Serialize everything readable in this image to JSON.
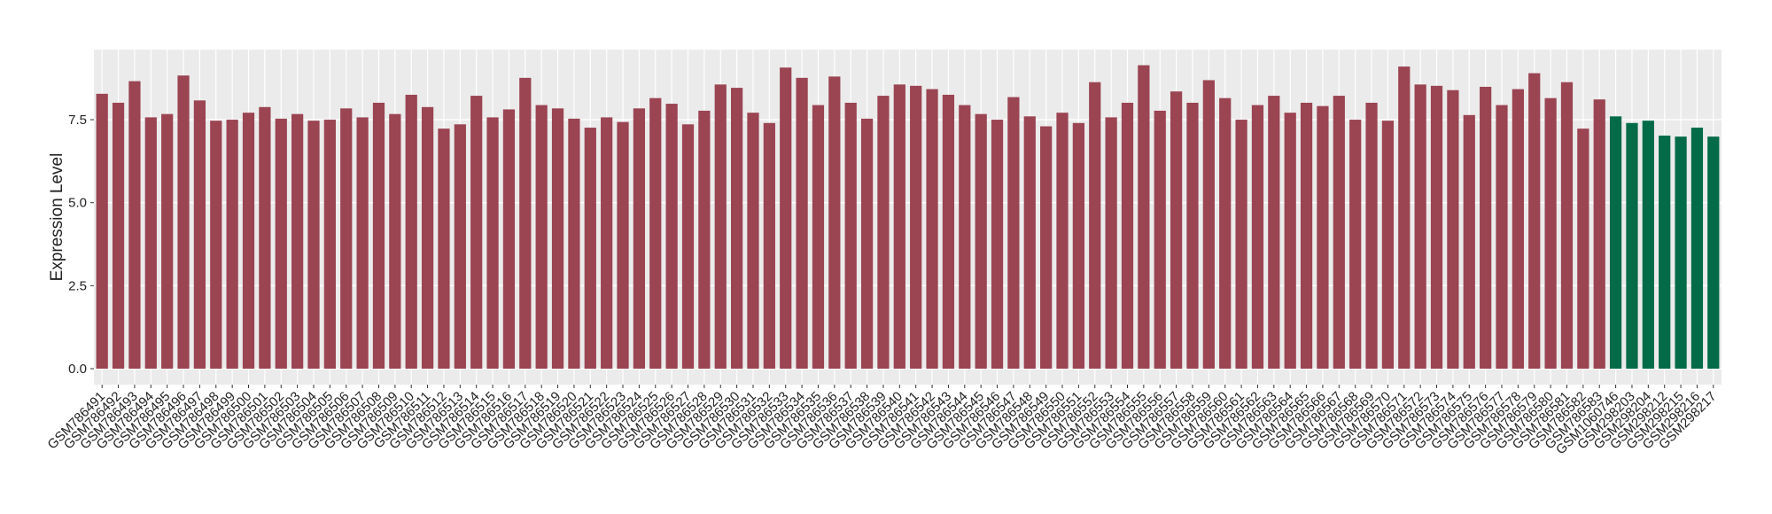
{
  "chart_data": {
    "type": "bar",
    "y_label": "Expression Level",
    "categories": [
      "GSM786491",
      "GSM786492",
      "GSM786493",
      "GSM786494",
      "GSM786495",
      "GSM786496",
      "GSM786497",
      "GSM786498",
      "GSM786499",
      "GSM786500",
      "GSM786501",
      "GSM786502",
      "GSM786503",
      "GSM786504",
      "GSM786505",
      "GSM786506",
      "GSM786507",
      "GSM786508",
      "GSM786509",
      "GSM786510",
      "GSM786511",
      "GSM786512",
      "GSM786513",
      "GSM786514",
      "GSM786515",
      "GSM786516",
      "GSM786517",
      "GSM786518",
      "GSM786519",
      "GSM786520",
      "GSM786521",
      "GSM786522",
      "GSM786523",
      "GSM786524",
      "GSM786525",
      "GSM786526",
      "GSM786527",
      "GSM786528",
      "GSM786529",
      "GSM786530",
      "GSM786531",
      "GSM786532",
      "GSM786533",
      "GSM786534",
      "GSM786535",
      "GSM786536",
      "GSM786537",
      "GSM786538",
      "GSM786539",
      "GSM786540",
      "GSM786541",
      "GSM786542",
      "GSM786543",
      "GSM786544",
      "GSM786545",
      "GSM786546",
      "GSM786547",
      "GSM786548",
      "GSM786549",
      "GSM786550",
      "GSM786551",
      "GSM786552",
      "GSM786553",
      "GSM786554",
      "GSM786555",
      "GSM786556",
      "GSM786557",
      "GSM786558",
      "GSM786559",
      "GSM786560",
      "GSM786561",
      "GSM786562",
      "GSM786563",
      "GSM786564",
      "GSM786565",
      "GSM786566",
      "GSM786567",
      "GSM786568",
      "GSM786569",
      "GSM786570",
      "GSM786571",
      "GSM786572",
      "GSM786573",
      "GSM786574",
      "GSM786575",
      "GSM786576",
      "GSM786577",
      "GSM786578",
      "GSM786579",
      "GSM786580",
      "GSM786581",
      "GSM786582",
      "GSM786583",
      "GSM1060746",
      "GSM298203",
      "GSM298204",
      "GSM298212",
      "GSM298215",
      "GSM298216",
      "GSM298217"
    ],
    "values": [
      8.28,
      8.01,
      8.66,
      7.57,
      7.67,
      8.83,
      8.08,
      7.47,
      7.5,
      7.71,
      7.88,
      7.53,
      7.67,
      7.47,
      7.5,
      7.84,
      7.57,
      8.01,
      7.67,
      8.25,
      7.88,
      7.23,
      7.36,
      8.22,
      7.57,
      7.81,
      8.76,
      7.94,
      7.84,
      7.53,
      7.26,
      7.57,
      7.43,
      7.84,
      8.15,
      7.98,
      7.36,
      7.77,
      8.56,
      8.46,
      7.71,
      7.4,
      9.07,
      8.76,
      7.94,
      8.8,
      8.01,
      7.53,
      8.22,
      8.56,
      8.52,
      8.42,
      8.25,
      7.94,
      7.67,
      7.5,
      8.18,
      7.6,
      7.3,
      7.71,
      7.4,
      8.63,
      7.57,
      8.01,
      9.14,
      7.77,
      8.35,
      8.01,
      8.69,
      8.15,
      7.5,
      7.94,
      8.22,
      7.71,
      8.01,
      7.91,
      8.22,
      7.5,
      8.01,
      7.47,
      9.1,
      8.56,
      8.52,
      8.39,
      7.64,
      8.49,
      7.94,
      8.42,
      8.9,
      8.15,
      8.63,
      7.23,
      8.11,
      7.6,
      7.4,
      7.47,
      7.02,
      6.99,
      7.26,
      6.99
    ],
    "bar_colors": [
      "#9b4452",
      "#9b4452",
      "#9b4452",
      "#9b4452",
      "#9b4452",
      "#9b4452",
      "#9b4452",
      "#9b4452",
      "#9b4452",
      "#9b4452",
      "#9b4452",
      "#9b4452",
      "#9b4452",
      "#9b4452",
      "#9b4452",
      "#9b4452",
      "#9b4452",
      "#9b4452",
      "#9b4452",
      "#9b4452",
      "#9b4452",
      "#9b4452",
      "#9b4452",
      "#9b4452",
      "#9b4452",
      "#9b4452",
      "#9b4452",
      "#9b4452",
      "#9b4452",
      "#9b4452",
      "#9b4452",
      "#9b4452",
      "#9b4452",
      "#9b4452",
      "#9b4452",
      "#9b4452",
      "#9b4452",
      "#9b4452",
      "#9b4452",
      "#9b4452",
      "#9b4452",
      "#9b4452",
      "#9b4452",
      "#9b4452",
      "#9b4452",
      "#9b4452",
      "#9b4452",
      "#9b4452",
      "#9b4452",
      "#9b4452",
      "#9b4452",
      "#9b4452",
      "#9b4452",
      "#9b4452",
      "#9b4452",
      "#9b4452",
      "#9b4452",
      "#9b4452",
      "#9b4452",
      "#9b4452",
      "#9b4452",
      "#9b4452",
      "#9b4452",
      "#9b4452",
      "#9b4452",
      "#9b4452",
      "#9b4452",
      "#9b4452",
      "#9b4452",
      "#9b4452",
      "#9b4452",
      "#9b4452",
      "#9b4452",
      "#9b4452",
      "#9b4452",
      "#9b4452",
      "#9b4452",
      "#9b4452",
      "#9b4452",
      "#9b4452",
      "#9b4452",
      "#9b4452",
      "#9b4452",
      "#9b4452",
      "#9b4452",
      "#9b4452",
      "#9b4452",
      "#9b4452",
      "#9b4452",
      "#9b4452",
      "#9b4452",
      "#9b4452",
      "#9b4452",
      "#036b47",
      "#036b47",
      "#036b47",
      "#036b47",
      "#036b47",
      "#036b47",
      "#036b47"
    ],
    "ylim": [
      -0.48,
      9.61
    ],
    "yticks": [
      {
        "value": 0,
        "label": "0.0"
      },
      2.5,
      {
        "value": 5,
        "label": "5.0"
      },
      7.5
    ],
    "grid": true
  }
}
